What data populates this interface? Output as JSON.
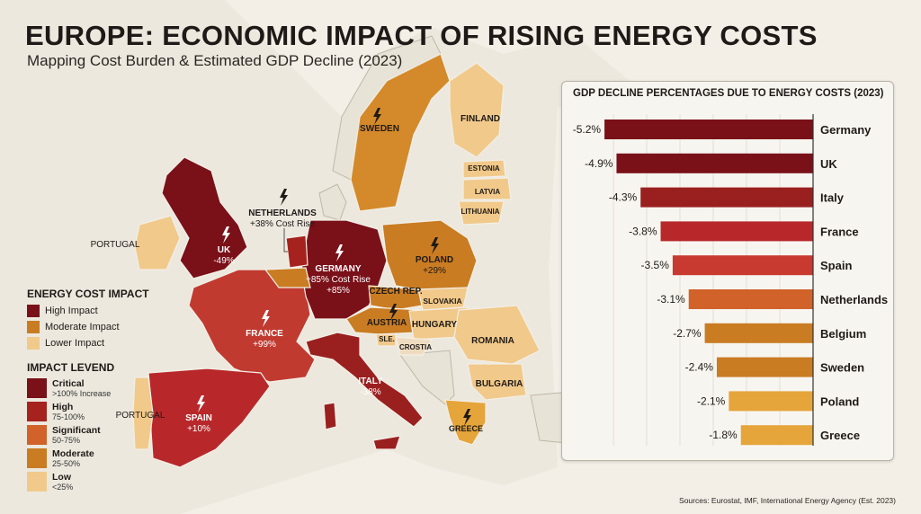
{
  "title": "EUROPE: ECONOMIC IMPACT OF RISING ENERGY COSTS",
  "subtitle": "Mapping Cost Burden & Estimated GDP Decline (2023)",
  "legend_energy": {
    "title": "ENERGY COST IMPACT",
    "items": [
      {
        "label": "High Impact",
        "color": "#7a1018"
      },
      {
        "label": "Moderate Impact",
        "color": "#c97c22"
      },
      {
        "label": "Lower Impact",
        "color": "#f1c98a"
      }
    ]
  },
  "legend_impact": {
    "title": "IMPACT LEVEND",
    "items": [
      {
        "label": "Critical",
        "range": ">100% Increase",
        "color": "#7a1018"
      },
      {
        "label": "High",
        "range": "75-100%",
        "color": "#a5221f"
      },
      {
        "label": "Significant",
        "range": "50-75%",
        "color": "#d0622a"
      },
      {
        "label": "Moderate",
        "range": "25-50%",
        "color": "#c97c22"
      },
      {
        "label": "Low",
        "range": "<25%",
        "color": "#f1c98a"
      }
    ]
  },
  "map_labels": {
    "uk": {
      "name": "UK",
      "value": "-49%"
    },
    "netherlands": {
      "name": "NETHERLANDS",
      "value": "+38% Cost Rise"
    },
    "germany": {
      "name": "GERMANY",
      "value": "+85% Cost Rise",
      "value2": "+85%"
    },
    "poland": {
      "name": "POLAND",
      "value": "+29%"
    },
    "france": {
      "name": "FRANCE",
      "value": "+99%"
    },
    "spain": {
      "name": "SPAIN",
      "value": "+10%"
    },
    "italy": {
      "name": "ITALY",
      "value": "-38%"
    },
    "portugal_top": "PORTUGAL",
    "portugal": "PORTUGAL",
    "sweden": "SWEDEN",
    "finland": "FINLAND",
    "estonia": "ESTONIA",
    "latvia": "LATVIA",
    "lithuania": "LITHUANIA",
    "czech": "CZECH REP.",
    "slovakia": "SLOVAKIA",
    "austria": "AUSTRIA",
    "hungary": "HUNGARY",
    "slovenia": "SLE.",
    "croatia": "CROSTIA",
    "romania": "ROMANIA",
    "bulgaria": "BULGARIA",
    "greece": "GREECE"
  },
  "source": "Sources: Eurostat, IMF, International Energy Agency (Est. 2023)",
  "chart_data": {
    "type": "bar",
    "orientation": "horizontal",
    "title": "GDP DECLINE PERCENTAGES DUE TO ENERGY COSTS (2023)",
    "categories": [
      "Germany",
      "UK",
      "Italy",
      "France",
      "Spain",
      "Netherlands",
      "Belgium",
      "Sweden",
      "Poland",
      "Greece"
    ],
    "values": [
      -5.2,
      -4.9,
      -4.3,
      -3.8,
      -3.5,
      -3.1,
      -2.7,
      -2.4,
      -2.1,
      -1.8
    ],
    "data_labels": [
      "-5.2%",
      "-4.9%",
      "-4.3%",
      "-3.8%",
      "-3.5%",
      "-3.1%",
      "-2.7%",
      "-2.4%",
      "-2.1%",
      "-1.8%"
    ],
    "colors": [
      "#7a1018",
      "#7a1018",
      "#9a1f1f",
      "#b8282a",
      "#c83a30",
      "#d0622a",
      "#c97c22",
      "#c97c22",
      "#e5a53a",
      "#e5a53a"
    ],
    "xlim": [
      -6,
      0
    ],
    "grid": true,
    "xlabel": "",
    "ylabel": ""
  }
}
